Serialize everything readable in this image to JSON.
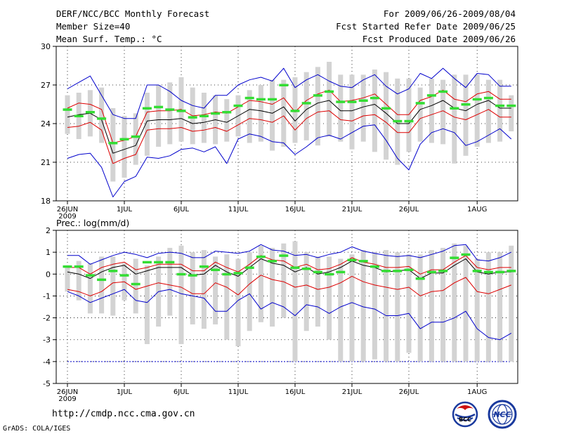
{
  "header": {
    "title": "DERF/NCC/BCC Monthly Forecast",
    "member_size": "Member Size=40",
    "variable": "Mean Surf. Temp.: °C",
    "forecast_period": "For 2009/06/26-2009/08/04",
    "refer_date": "Fcst Started Refer Date 2009/06/25",
    "produced_date": "Fcst Produced Date 2009/06/26"
  },
  "footer": {
    "url": "http://cmdp.ncc.cma.gov.cn",
    "grads": "GrADS: COLA/IGES",
    "logo_bcc": "BCC",
    "logo_ncc": "NCC"
  },
  "colors": {
    "box": "#d3d3d3",
    "climatology": "#33dd33",
    "mean": "#000000",
    "sd": "#dd0000",
    "envelope": "#0000cc",
    "grid": "#000000"
  },
  "chart_data": [
    {
      "type": "box-line",
      "title": "Mean Surf. Temp.: °C",
      "ylim": [
        18,
        30
      ],
      "yticks": [
        "18",
        "21",
        "24",
        "27",
        "30"
      ],
      "xtick_labels": [
        "26JUN",
        "1JUL",
        "6JUL",
        "11JUL",
        "16JUL",
        "21JUL",
        "26JUL",
        "1AUG"
      ],
      "xtick_days": [
        0,
        5,
        10,
        15,
        20,
        25,
        30,
        36
      ],
      "year_label": "2009",
      "box_low": [
        23.2,
        22.8,
        23.0,
        22.5,
        19.5,
        19.8,
        20.8,
        21.5,
        22.2,
        22.4,
        22.6,
        22.4,
        22.5,
        22.4,
        22.6,
        23.0,
        22.5,
        22.6,
        21.9,
        22.2,
        22.5,
        22.7,
        22.3,
        23.0,
        22.6,
        22.0,
        22.6,
        21.8,
        21.2,
        20.8,
        21.8,
        22.6,
        22.5,
        22.4,
        20.9,
        21.5,
        22.2,
        22.5,
        22.6,
        23.4
      ],
      "box_high": [
        26.2,
        26.4,
        26.6,
        26.8,
        25.2,
        24.6,
        24.8,
        26.4,
        27.0,
        27.2,
        27.6,
        26.8,
        26.4,
        26.2,
        25.9,
        26.2,
        26.6,
        27.0,
        27.4,
        27.4,
        27.6,
        28.0,
        28.4,
        28.8,
        27.8,
        27.8,
        27.8,
        28.2,
        28.0,
        27.5,
        27.5,
        26.8,
        27.5,
        27.4,
        27.8,
        27.8,
        27.8,
        27.4,
        27.4,
        26.2
      ],
      "climatology": [
        25.1,
        24.6,
        24.9,
        24.4,
        22.5,
        22.8,
        23.0,
        25.2,
        25.3,
        25.1,
        25.0,
        24.5,
        24.6,
        24.8,
        24.9,
        25.4,
        26.0,
        25.9,
        25.9,
        27.0,
        25.0,
        25.6,
        26.2,
        26.5,
        25.7,
        25.7,
        25.8,
        26.0,
        25.2,
        24.2,
        24.2,
        25.6,
        26.2,
        26.5,
        25.2,
        25.5,
        25.9,
        26.0,
        25.4,
        25.4
      ],
      "mean": [
        24.5,
        24.7,
        24.8,
        24.3,
        21.7,
        22.0,
        22.3,
        24.2,
        24.3,
        24.3,
        24.4,
        24.0,
        24.1,
        24.3,
        24.1,
        24.6,
        25.1,
        25.0,
        24.8,
        25.3,
        24.2,
        25.1,
        25.6,
        25.8,
        25.0,
        25.0,
        25.3,
        25.5,
        24.8,
        24.0,
        24.0,
        25.1,
        25.4,
        25.8,
        25.2,
        25.0,
        25.5,
        25.8,
        25.2,
        25.2
      ],
      "mean_plus_sd": [
        25.2,
        25.6,
        25.5,
        25.1,
        22.5,
        22.7,
        23.0,
        24.9,
        25.0,
        25.0,
        25.1,
        24.6,
        24.7,
        24.9,
        24.8,
        25.3,
        25.8,
        25.7,
        25.5,
        26.0,
        24.9,
        25.8,
        26.3,
        26.6,
        25.7,
        25.8,
        26.0,
        26.3,
        25.5,
        24.7,
        24.7,
        25.8,
        26.1,
        26.6,
        25.9,
        25.7,
        26.3,
        26.5,
        25.9,
        25.9
      ],
      "mean_minus_sd": [
        23.7,
        23.8,
        24.1,
        23.5,
        20.9,
        21.3,
        21.6,
        23.5,
        23.6,
        23.6,
        23.7,
        23.4,
        23.5,
        23.7,
        23.4,
        23.9,
        24.4,
        24.3,
        24.1,
        24.6,
        23.5,
        24.4,
        24.9,
        25.0,
        24.3,
        24.2,
        24.6,
        24.7,
        24.1,
        23.3,
        23.3,
        24.4,
        24.7,
        25.0,
        24.5,
        24.3,
        24.7,
        25.1,
        24.5,
        24.5
      ],
      "env_max": [
        26.7,
        27.2,
        27.7,
        26.2,
        24.7,
        24.4,
        24.4,
        27.0,
        27.0,
        26.5,
        25.8,
        25.4,
        25.2,
        26.2,
        26.2,
        27.0,
        27.4,
        27.6,
        27.3,
        28.3,
        26.8,
        27.4,
        27.8,
        27.3,
        26.9,
        26.8,
        27.4,
        27.8,
        26.9,
        26.3,
        26.7,
        27.9,
        27.5,
        28.3,
        27.5,
        26.8,
        27.9,
        27.8,
        26.9,
        26.9
      ],
      "env_min": [
        21.3,
        21.6,
        21.7,
        20.6,
        18.3,
        19.5,
        19.9,
        21.4,
        21.3,
        21.5,
        22.0,
        22.1,
        21.8,
        22.2,
        20.9,
        22.8,
        23.2,
        23.0,
        22.6,
        22.5,
        21.6,
        22.2,
        22.9,
        23.1,
        22.8,
        23.3,
        23.8,
        23.9,
        22.7,
        21.3,
        20.4,
        22.4,
        23.3,
        23.6,
        23.3,
        22.3,
        22.6,
        23.1,
        23.6,
        22.8
      ]
    },
    {
      "type": "box-line",
      "title": "Prec.: log(mm/d)",
      "ylim": [
        -5,
        2
      ],
      "yticks": [
        "-5",
        "-4",
        "-3",
        "-2",
        "-1",
        "0",
        "1",
        "2"
      ],
      "xtick_labels": [
        "26JUN",
        "1JUL",
        "6JUL",
        "11JUL",
        "16JUL",
        "21JUL",
        "26JUL",
        "1AUG"
      ],
      "xtick_days": [
        0,
        5,
        10,
        15,
        20,
        25,
        30,
        36
      ],
      "year_label": "2009",
      "floor_line": -4,
      "box_low": [
        -0.8,
        -1.2,
        -1.8,
        -1.8,
        -1.9,
        -1.2,
        -1.8,
        -3.2,
        -2.4,
        -1.9,
        -3.2,
        -2.3,
        -2.5,
        -2.3,
        -3.0,
        -3.3,
        -2.6,
        -2.2,
        -2.4,
        -2.0,
        -4.0,
        -2.6,
        -2.4,
        -3.0,
        -4.0,
        -4.0,
        -4.0,
        -3.9,
        -4.0,
        -4.0,
        -3.6,
        -4.0,
        -4.0,
        -4.0,
        -4.0,
        -4.0,
        -4.0,
        -4.0,
        -4.0,
        -4.0
      ],
      "box_high": [
        0.4,
        0.6,
        0.5,
        0.8,
        0.8,
        0.5,
        0.7,
        0.4,
        0.8,
        1.2,
        1.3,
        1.0,
        1.1,
        0.8,
        0.9,
        0.7,
        1.0,
        1.3,
        1.2,
        1.4,
        1.5,
        1.0,
        0.8,
        0.8,
        0.7,
        0.9,
        1.1,
        1.0,
        1.1,
        1.0,
        0.9,
        0.9,
        1.1,
        1.2,
        1.4,
        1.3,
        0.7,
        1.0,
        1.0,
        1.3
      ],
      "climatology": [
        0.35,
        0.35,
        -0.05,
        -0.25,
        0.15,
        -0.05,
        -0.45,
        0.55,
        0.55,
        0.55,
        0.0,
        -0.05,
        0.35,
        0.2,
        0.0,
        0.05,
        0.3,
        0.8,
        0.6,
        0.85,
        0.3,
        0.25,
        0.1,
        0.0,
        0.1,
        0.65,
        0.6,
        0.35,
        0.15,
        0.15,
        0.2,
        -0.2,
        0.1,
        0.15,
        0.75,
        0.9,
        0.15,
        0.1,
        0.1,
        0.15
      ],
      "mean": [
        0.1,
        0.0,
        -0.2,
        0.1,
        0.3,
        0.4,
        0.0,
        0.15,
        0.3,
        0.3,
        0.3,
        -0.05,
        0.0,
        0.4,
        0.1,
        -0.1,
        0.3,
        0.7,
        0.5,
        0.4,
        0.1,
        0.3,
        0.0,
        0.1,
        0.3,
        0.6,
        0.4,
        0.3,
        0.1,
        0.15,
        0.2,
        -0.2,
        0.05,
        0.05,
        0.4,
        0.7,
        0.1,
        0.0,
        0.1,
        0.1
      ],
      "mean_plus_sd": [
        0.3,
        0.3,
        0.0,
        0.3,
        0.45,
        0.55,
        0.2,
        0.3,
        0.45,
        0.45,
        0.45,
        0.15,
        0.15,
        0.55,
        0.3,
        0.1,
        0.45,
        0.85,
        0.65,
        0.6,
        0.3,
        0.45,
        0.2,
        0.25,
        0.45,
        0.75,
        0.55,
        0.45,
        0.3,
        0.3,
        0.35,
        0.0,
        0.2,
        0.2,
        0.55,
        0.85,
        0.3,
        0.2,
        0.3,
        0.3
      ],
      "mean_minus_sd": [
        -0.7,
        -0.8,
        -1.0,
        -0.8,
        -0.4,
        -0.35,
        -0.7,
        -0.55,
        -0.4,
        -0.5,
        -0.6,
        -0.9,
        -0.9,
        -0.4,
        -0.6,
        -0.95,
        -0.45,
        -0.05,
        -0.25,
        -0.35,
        -0.6,
        -0.5,
        -0.7,
        -0.6,
        -0.4,
        -0.1,
        -0.35,
        -0.5,
        -0.6,
        -0.7,
        -0.6,
        -1.0,
        -0.8,
        -0.75,
        -0.4,
        -0.15,
        -0.8,
        -0.9,
        -0.7,
        -0.5
      ],
      "env_max": [
        0.85,
        0.85,
        0.45,
        0.65,
        0.85,
        1.0,
        0.9,
        0.75,
        0.95,
        1.0,
        0.95,
        0.75,
        0.75,
        1.05,
        1.0,
        0.95,
        1.05,
        1.35,
        1.1,
        1.05,
        0.85,
        0.9,
        0.75,
        0.9,
        1.0,
        1.25,
        1.05,
        0.95,
        0.85,
        0.8,
        0.85,
        0.75,
        0.9,
        1.05,
        1.3,
        1.35,
        0.65,
        0.6,
        0.75,
        1.0
      ],
      "env_min": [
        -0.8,
        -1.0,
        -1.3,
        -1.1,
        -0.9,
        -0.7,
        -1.2,
        -1.3,
        -0.8,
        -0.7,
        -0.9,
        -1.0,
        -1.1,
        -1.7,
        -1.7,
        -1.2,
        -0.9,
        -1.6,
        -1.3,
        -1.5,
        -1.9,
        -1.4,
        -1.5,
        -1.8,
        -1.5,
        -1.3,
        -1.5,
        -1.6,
        -1.9,
        -1.9,
        -1.8,
        -2.5,
        -2.2,
        -2.2,
        -2.0,
        -1.7,
        -2.5,
        -2.9,
        -3.0,
        -2.7
      ]
    }
  ]
}
